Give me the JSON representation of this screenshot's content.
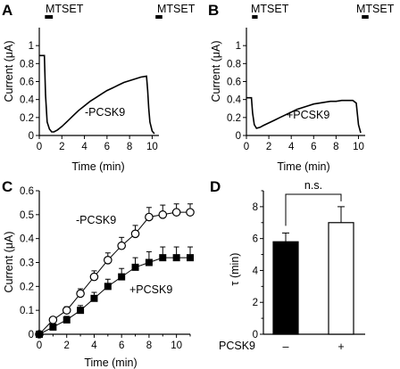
{
  "figure": {
    "panels": {
      "A": {
        "letter": "A",
        "annotation": "-PCSK9",
        "bar_label_left": "MTSET",
        "bar_label_right": "MTSET"
      },
      "B": {
        "letter": "B",
        "annotation": "+PCSK9",
        "bar_label_left": "MTSET",
        "bar_label_right": "MTSET"
      },
      "C": {
        "letter": "C",
        "annotation_open": "-PCSK9",
        "annotation_filled": "+PCSK9"
      },
      "D": {
        "letter": "D",
        "significance": "n.s.",
        "row_label": "PCSK9",
        "minus": "–",
        "plus": "+"
      }
    }
  },
  "chart_data": [
    {
      "panel": "A",
      "type": "line",
      "xlabel": "Time (min)",
      "ylabel": "Current (μA)",
      "xlim": [
        0,
        10.6
      ],
      "ylim": [
        0,
        1.2
      ],
      "xticks": [
        0,
        2,
        4,
        6,
        8,
        10
      ],
      "yticks": [
        0,
        0.2,
        0.4,
        0.6,
        0.8,
        1
      ],
      "ytick_labels": [
        "0",
        "0.2",
        "0.4",
        "0.6",
        "0.8",
        "1"
      ],
      "mtset_intervals": [
        [
          0.5,
          1.2
        ],
        [
          10.3,
          10.9
        ]
      ],
      "series": [
        {
          "x": [
            0,
            0.45,
            0.55,
            0.7,
            0.9,
            1.1,
            1.3,
            1.6,
            2,
            2.5,
            3,
            3.5,
            4,
            4.5,
            5,
            5.5,
            6,
            6.5,
            7,
            7.5,
            8,
            8.5,
            9,
            9.5,
            9.6,
            9.7,
            9.8,
            10,
            10.2
          ],
          "y": [
            0.89,
            0.89,
            0.45,
            0.15,
            0.07,
            0.04,
            0.04,
            0.06,
            0.1,
            0.16,
            0.22,
            0.28,
            0.33,
            0.38,
            0.42,
            0.46,
            0.5,
            0.53,
            0.56,
            0.59,
            0.61,
            0.63,
            0.65,
            0.66,
            0.5,
            0.3,
            0.15,
            0.05,
            0.02
          ]
        }
      ]
    },
    {
      "panel": "B",
      "type": "line",
      "xlabel": "Time (min)",
      "ylabel": "Current (μA)",
      "xlim": [
        0,
        10.6
      ],
      "ylim": [
        0,
        1.2
      ],
      "xticks": [
        0,
        2,
        4,
        6,
        8,
        10
      ],
      "yticks": [
        0,
        0.2,
        0.4,
        0.6,
        0.8,
        1
      ],
      "ytick_labels": [
        "0",
        "0.2",
        "0.4",
        "0.6",
        "0.8",
        "1"
      ],
      "mtset_intervals": [
        [
          0.5,
          1.0
        ],
        [
          10.3,
          10.9
        ]
      ],
      "series": [
        {
          "x": [
            0,
            0.45,
            0.55,
            0.7,
            0.9,
            1.2,
            1.5,
            2,
            2.5,
            3,
            3.5,
            4,
            4.5,
            5,
            5.5,
            6,
            6.5,
            7,
            7.5,
            8,
            8.5,
            9,
            9.5,
            9.8,
            10,
            10.2
          ],
          "y": [
            0.42,
            0.42,
            0.25,
            0.12,
            0.08,
            0.09,
            0.11,
            0.14,
            0.17,
            0.2,
            0.23,
            0.26,
            0.29,
            0.31,
            0.33,
            0.35,
            0.36,
            0.37,
            0.38,
            0.38,
            0.39,
            0.39,
            0.39,
            0.36,
            0.12,
            0.03
          ]
        }
      ]
    },
    {
      "panel": "C",
      "type": "scatter",
      "xlabel": "Time (min)",
      "ylabel": "Current (μA)",
      "xlim": [
        0,
        11
      ],
      "ylim": [
        0,
        0.6
      ],
      "xticks": [
        0,
        2,
        4,
        6,
        8,
        10
      ],
      "yticks": [
        0,
        0.1,
        0.2,
        0.3,
        0.4,
        0.5,
        0.6
      ],
      "ytick_labels": [
        "0",
        "0.1",
        "0.2",
        "0.3",
        "0.4",
        "0.5",
        "0.6"
      ],
      "series": [
        {
          "marker": "open-circle",
          "x": [
            0,
            1,
            2,
            3,
            4,
            5,
            6,
            7,
            8,
            9,
            10,
            11
          ],
          "y": [
            0,
            0.06,
            0.1,
            0.17,
            0.24,
            0.31,
            0.37,
            0.42,
            0.49,
            0.5,
            0.51,
            0.51
          ],
          "err": [
            0,
            0.01,
            0.015,
            0.02,
            0.025,
            0.03,
            0.035,
            0.035,
            0.04,
            0.04,
            0.035,
            0.035
          ]
        },
        {
          "marker": "filled-square",
          "x": [
            0,
            1,
            2,
            3,
            4,
            5,
            6,
            7,
            8,
            9,
            10,
            11
          ],
          "y": [
            0,
            0.03,
            0.06,
            0.1,
            0.15,
            0.2,
            0.24,
            0.28,
            0.3,
            0.32,
            0.32,
            0.32
          ],
          "err": [
            0,
            0.01,
            0.015,
            0.02,
            0.025,
            0.03,
            0.035,
            0.04,
            0.045,
            0.045,
            0.045,
            0.045
          ]
        }
      ]
    },
    {
      "panel": "D",
      "type": "bar",
      "ylabel": "τ (min)",
      "ylim": [
        0,
        9
      ],
      "yticks": [
        0,
        2,
        4,
        6,
        8
      ],
      "categories": [
        "–",
        "+"
      ],
      "values": [
        5.8,
        7.0
      ],
      "err": [
        0.55,
        1.0
      ],
      "fills": [
        "#000000",
        "#ffffff"
      ]
    }
  ]
}
